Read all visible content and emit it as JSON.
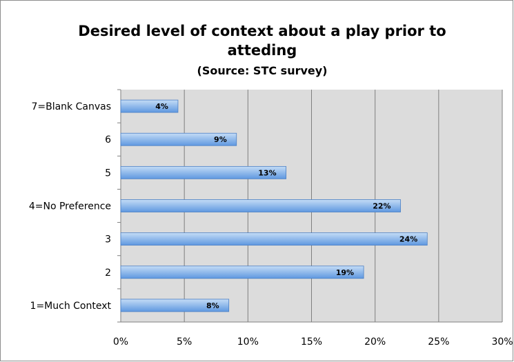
{
  "chart_data": {
    "type": "bar",
    "orientation": "horizontal",
    "title": "Desired level of context about a play prior to atteding",
    "subtitle": "(Source: STC survey)",
    "categories": [
      "7=Blank Canvas",
      "6",
      "5",
      "4=No Preference",
      "3",
      "2",
      "1=Much Context"
    ],
    "values": [
      4.5,
      9.1,
      13,
      22,
      24.1,
      19.1,
      8.5
    ],
    "data_labels": [
      "4%",
      "9%",
      "13%",
      "22%",
      "24%",
      "19%",
      "8%"
    ],
    "x_ticks": [
      "0%",
      "5%",
      "10%",
      "15%",
      "20%",
      "25%",
      "30%"
    ],
    "xlim": [
      0,
      30
    ],
    "x_tick_step": 5,
    "grid": true,
    "legend": "none",
    "colors": {
      "bar_fill_top": "#c4dcf6",
      "bar_fill_bottom": "#5f98e0",
      "bar_stroke": "#4a7fc4",
      "plot_background": "#dcdcdc",
      "gridline": "#7f7f7f",
      "frame_border": "#8c8c8c"
    }
  }
}
